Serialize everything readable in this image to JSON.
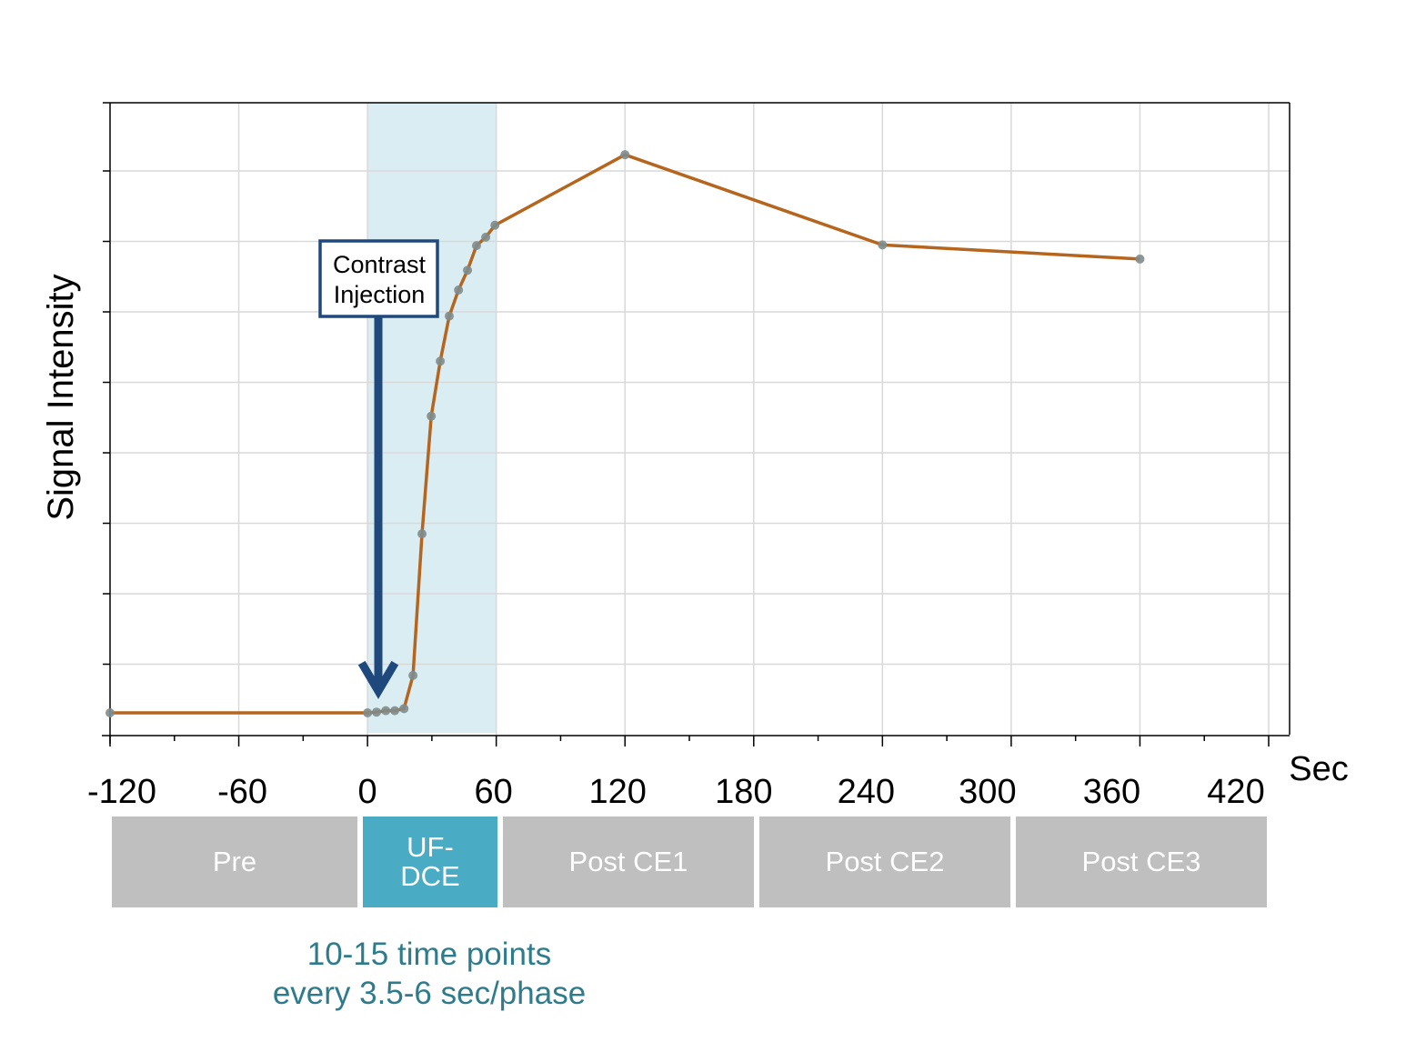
{
  "chart_data": {
    "type": "line",
    "title": "",
    "xlabel": "Sec",
    "ylabel": "Signal Intensity",
    "xlim": [
      -120,
      430
    ],
    "ylim": [
      0,
      9
    ],
    "x_ticks": [
      -120,
      -60,
      0,
      60,
      120,
      180,
      240,
      300,
      360,
      420
    ],
    "x_tick_labels": [
      "-120",
      "-60",
      "0",
      "60",
      "120",
      "180",
      "240",
      "300",
      "360",
      "420"
    ],
    "y_tick_labels_shown": false,
    "grid": true,
    "series": [
      {
        "x": [
          -120,
          0,
          4.2,
          8.5,
          12.7,
          17,
          21.2,
          25.4,
          29.7,
          33.9,
          38.1,
          42.4,
          46.6,
          50.8,
          55.1,
          59.4,
          120,
          240,
          360
        ],
        "y": [
          0.31,
          0.31,
          0.32,
          0.34,
          0.34,
          0.37,
          0.84,
          2.85,
          4.52,
          5.3,
          5.94,
          6.31,
          6.59,
          6.94,
          7.06,
          7.23,
          8.23,
          6.95,
          6.75
        ]
      }
    ],
    "highlight_region": {
      "x": [
        0,
        60
      ]
    },
    "annotation": {
      "text_lines": [
        "Contrast",
        "Injection"
      ],
      "arrow_at_x": 5
    },
    "colors": {
      "line": "#b5651d",
      "markers": "#7f8c8d",
      "shade": "#daedf3",
      "annotation": "#1f497d",
      "phase_gray": "#bfbfbf",
      "phase_uf": "#4aabc5",
      "caption": "#2e7b8c"
    }
  },
  "phases": [
    {
      "label": "Pre"
    },
    {
      "label": "UF-\nDCE",
      "line1": "UF-",
      "line2": "DCE"
    },
    {
      "label": "Post CE1"
    },
    {
      "label": "Post CE2"
    },
    {
      "label": "Post CE3"
    }
  ],
  "caption": {
    "line1": "10-15 time points",
    "line2": "every 3.5-6 sec/phase"
  }
}
